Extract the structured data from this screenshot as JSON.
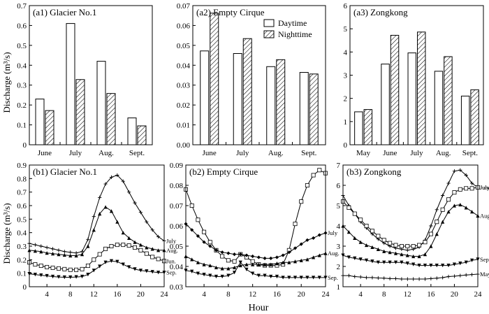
{
  "figure": {
    "ylabel": "Discharge (m³/s)",
    "xlabel_bottom": "Hour"
  },
  "chart_data": [
    {
      "panel": "a1",
      "type": "bar",
      "title": "(a1) Glacier No.1",
      "categories": [
        "June",
        "July",
        "Aug.",
        "Sept."
      ],
      "series": [
        {
          "name": "Daytime",
          "values": [
            0.23,
            0.61,
            0.42,
            0.135
          ]
        },
        {
          "name": "Nighttime",
          "values": [
            0.172,
            0.328,
            0.258,
            0.095
          ]
        }
      ],
      "ylim": [
        0,
        0.7
      ],
      "yticks": [
        "0",
        "0.1",
        "0.2",
        "0.3",
        "0.4",
        "0.5",
        "0.6",
        "0.7"
      ],
      "ylabel": "Discharge (m³/s)"
    },
    {
      "panel": "a2",
      "type": "bar",
      "title": "(a2) Empty Cirque",
      "categories": [
        "June",
        "July",
        "Aug.",
        "Sept."
      ],
      "series": [
        {
          "name": "Daytime",
          "values": [
            0.0472,
            0.0459,
            0.0393,
            0.0364
          ]
        },
        {
          "name": "Nighttime",
          "values": [
            0.0662,
            0.0534,
            0.0428,
            0.0356
          ]
        }
      ],
      "ylim": [
        0,
        0.07
      ],
      "yticks": [
        "0.00",
        "0.01",
        "0.02",
        "0.03",
        "0.04",
        "0.05",
        "0.06",
        "0.07"
      ],
      "legend": [
        "Daytime",
        "Nighttime"
      ],
      "legend_position": "top-right"
    },
    {
      "panel": "a3",
      "type": "bar",
      "title": "(a3) Zongkong",
      "categories": [
        "May",
        "June",
        "July",
        "Aug.",
        "Sept."
      ],
      "series": [
        {
          "name": "Daytime",
          "values": [
            1.42,
            3.48,
            3.96,
            3.17,
            2.1
          ]
        },
        {
          "name": "Nighttime",
          "values": [
            1.52,
            4.72,
            4.86,
            3.8,
            2.37
          ]
        }
      ],
      "ylim": [
        0,
        6
      ],
      "yticks": [
        "0",
        "1",
        "2",
        "3",
        "4",
        "5",
        "6"
      ]
    },
    {
      "panel": "b1",
      "type": "line",
      "title": "(b1) Glacier No.1",
      "x": [
        1,
        2,
        3,
        4,
        5,
        6,
        7,
        8,
        9,
        10,
        11,
        12,
        13,
        14,
        15,
        16,
        17,
        18,
        19,
        20,
        21,
        22,
        23,
        24
      ],
      "xlim": [
        1,
        24
      ],
      "ylim": [
        0,
        0.9
      ],
      "xticks": [
        "4",
        "8",
        "12",
        "16",
        "20",
        "24"
      ],
      "yticks": [
        "0",
        "0.1",
        "0.2",
        "0.3",
        "0.4",
        "0.5",
        "0.6",
        "0.7",
        "0.8",
        "0.9"
      ],
      "ylabel": "Discharge (m³/s)",
      "series": [
        {
          "name": "July",
          "marker": "plus",
          "values": [
            0.32,
            0.31,
            0.3,
            0.29,
            0.28,
            0.27,
            0.26,
            0.255,
            0.25,
            0.26,
            0.35,
            0.52,
            0.66,
            0.76,
            0.81,
            0.825,
            0.78,
            0.7,
            0.62,
            0.55,
            0.48,
            0.42,
            0.37,
            0.34
          ]
        },
        {
          "name": "Aug.",
          "marker": "triangle-up",
          "values": [
            0.27,
            0.265,
            0.26,
            0.25,
            0.245,
            0.24,
            0.235,
            0.23,
            0.23,
            0.24,
            0.3,
            0.42,
            0.54,
            0.59,
            0.56,
            0.48,
            0.4,
            0.36,
            0.33,
            0.31,
            0.29,
            0.28,
            0.27,
            0.27
          ]
        },
        {
          "name": "Jun.",
          "marker": "square",
          "values": [
            0.18,
            0.165,
            0.155,
            0.145,
            0.14,
            0.135,
            0.13,
            0.125,
            0.125,
            0.13,
            0.155,
            0.2,
            0.24,
            0.28,
            0.3,
            0.31,
            0.31,
            0.305,
            0.29,
            0.27,
            0.245,
            0.22,
            0.205,
            0.19
          ]
        },
        {
          "name": "Sep.",
          "marker": "triangle-down",
          "values": [
            0.095,
            0.09,
            0.085,
            0.08,
            0.075,
            0.072,
            0.07,
            0.07,
            0.072,
            0.075,
            0.09,
            0.12,
            0.15,
            0.18,
            0.19,
            0.185,
            0.165,
            0.145,
            0.13,
            0.12,
            0.115,
            0.11,
            0.105,
            0.105
          ]
        }
      ]
    },
    {
      "panel": "b2",
      "type": "line",
      "title": "(b2) Empty Cirque",
      "x": [
        1,
        2,
        3,
        4,
        5,
        6,
        7,
        8,
        9,
        10,
        11,
        12,
        13,
        14,
        15,
        16,
        17,
        18,
        19,
        20,
        21,
        22,
        23,
        24
      ],
      "xlim": [
        1,
        24
      ],
      "ylim": [
        0.03,
        0.09
      ],
      "xticks": [
        "4",
        "8",
        "12",
        "16",
        "20",
        "24"
      ],
      "yticks": [
        "0.03",
        "0.04",
        "0.05",
        "0.06",
        "0.07",
        "0.08",
        "0.09"
      ],
      "xlabel": "Hour",
      "series": [
        {
          "name": "",
          "marker": "square",
          "values": [
            0.078,
            0.07,
            0.063,
            0.057,
            0.052,
            0.048,
            0.045,
            0.043,
            0.0425,
            0.046,
            0.0445,
            0.0425,
            0.041,
            0.0405,
            0.0405,
            0.0405,
            0.041,
            0.048,
            0.061,
            0.072,
            0.08,
            0.085,
            0.0875,
            0.086
          ]
        },
        {
          "name": "July",
          "marker": "diamond",
          "values": [
            0.061,
            0.058,
            0.055,
            0.052,
            0.05,
            0.048,
            0.047,
            0.0465,
            0.046,
            0.046,
            0.0455,
            0.045,
            0.0445,
            0.044,
            0.044,
            0.0445,
            0.0455,
            0.047,
            0.049,
            0.051,
            0.053,
            0.054,
            0.0555,
            0.0565
          ]
        },
        {
          "name": "Aug.",
          "marker": "triangle-up",
          "values": [
            0.045,
            0.0435,
            0.042,
            0.041,
            0.0405,
            0.0395,
            0.039,
            0.039,
            0.0395,
            0.0405,
            0.041,
            0.041,
            0.041,
            0.041,
            0.041,
            0.0415,
            0.042,
            0.042,
            0.0425,
            0.043,
            0.0435,
            0.0445,
            0.0455,
            0.0465
          ]
        },
        {
          "name": "Sep.",
          "marker": "triangle-down",
          "values": [
            0.038,
            0.0375,
            0.0365,
            0.036,
            0.0355,
            0.035,
            0.035,
            0.0355,
            0.037,
            0.042,
            0.0385,
            0.0365,
            0.0355,
            0.0355,
            0.035,
            0.035,
            0.0345,
            0.0345,
            0.0345,
            0.0345,
            0.0345,
            0.0345,
            0.0345,
            0.0345
          ]
        }
      ]
    },
    {
      "panel": "b3",
      "type": "line",
      "title": "(b3) Zongkong",
      "x": [
        1,
        2,
        3,
        4,
        5,
        6,
        7,
        8,
        9,
        10,
        11,
        12,
        13,
        14,
        15,
        16,
        17,
        18,
        19,
        20,
        21,
        22,
        23,
        24
      ],
      "xlim": [
        1,
        24
      ],
      "ylim": [
        1,
        7
      ],
      "xticks": [
        "4",
        "8",
        "12",
        "16",
        "20",
        "24"
      ],
      "yticks": [
        "1",
        "2",
        "3",
        "4",
        "5",
        "6",
        "7"
      ],
      "series": [
        {
          "name": "July",
          "marker": "plus",
          "values": [
            5.5,
            5.0,
            4.6,
            4.2,
            3.9,
            3.6,
            3.35,
            3.15,
            3.0,
            2.9,
            2.85,
            2.8,
            2.85,
            2.95,
            3.3,
            4.0,
            4.8,
            5.5,
            6.1,
            6.7,
            6.75,
            6.5,
            6.1,
            5.9
          ]
        },
        {
          "name": "June",
          "marker": "square",
          "values": [
            5.2,
            4.9,
            4.6,
            4.3,
            4.0,
            3.75,
            3.5,
            3.3,
            3.15,
            3.05,
            3.0,
            3.0,
            3.0,
            3.05,
            3.2,
            3.6,
            4.2,
            4.8,
            5.3,
            5.65,
            5.8,
            5.85,
            5.85,
            5.9
          ]
        },
        {
          "name": "Aug.",
          "marker": "triangle-up",
          "values": [
            4.0,
            3.7,
            3.4,
            3.2,
            3.05,
            2.95,
            2.85,
            2.75,
            2.7,
            2.65,
            2.6,
            2.55,
            2.5,
            2.5,
            2.6,
            3.0,
            3.6,
            4.2,
            4.7,
            5.0,
            5.05,
            4.9,
            4.7,
            4.5
          ]
        },
        {
          "name": "Sep.",
          "marker": "triangle-down",
          "values": [
            2.55,
            2.45,
            2.4,
            2.35,
            2.3,
            2.25,
            2.2,
            2.2,
            2.2,
            2.2,
            2.2,
            2.15,
            2.1,
            2.05,
            2.05,
            2.05,
            2.05,
            2.05,
            2.05,
            2.1,
            2.15,
            2.2,
            2.3,
            2.35
          ]
        },
        {
          "name": "May",
          "marker": "plus",
          "values": [
            1.55,
            1.55,
            1.5,
            1.48,
            1.45,
            1.45,
            1.43,
            1.42,
            1.4,
            1.4,
            1.38,
            1.38,
            1.38,
            1.38,
            1.38,
            1.4,
            1.42,
            1.45,
            1.5,
            1.52,
            1.55,
            1.58,
            1.6,
            1.62
          ]
        }
      ]
    }
  ]
}
